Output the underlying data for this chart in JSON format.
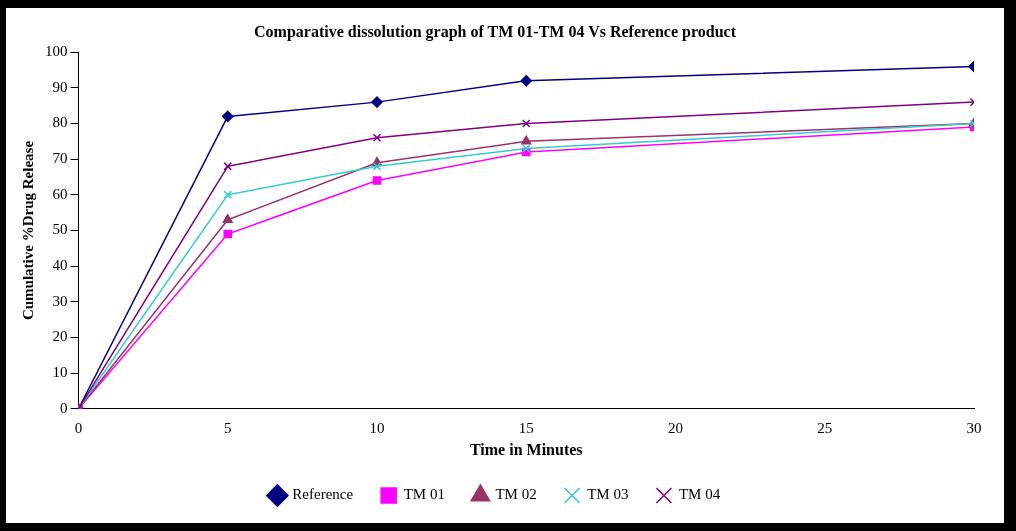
{
  "chart_data": {
    "type": "line",
    "title": "Comparative dissolution graph of TM 01-TM 04 Vs Reference product",
    "xlabel": "Time in Minutes",
    "ylabel": "Cumulative %Drug Release",
    "x": [
      0,
      5,
      10,
      15,
      30
    ],
    "series": [
      {
        "name": "Reference",
        "color": "#000080",
        "marker": "diamond",
        "values": [
          0,
          82,
          86,
          92,
          96
        ]
      },
      {
        "name": "TM 01",
        "color": "#ff00ff",
        "marker": "square",
        "values": [
          0,
          49,
          64,
          72,
          79
        ]
      },
      {
        "name": "TM 02",
        "color": "#993366",
        "marker": "triangle",
        "values": [
          0,
          53,
          69,
          75,
          80
        ]
      },
      {
        "name": "TM 03",
        "color": "#33cccc",
        "marker": "cross",
        "values": [
          0,
          60,
          68,
          73,
          80
        ]
      },
      {
        "name": "TM 04",
        "color": "#800080",
        "marker": "cross",
        "values": [
          0,
          68,
          76,
          80,
          86
        ]
      }
    ],
    "xlim": [
      0,
      30
    ],
    "xticks": [
      0,
      5,
      10,
      15,
      20,
      25,
      30
    ],
    "ylim": [
      0,
      100
    ],
    "yticks": [
      0,
      10,
      20,
      30,
      40,
      50,
      60,
      70,
      80,
      90,
      100
    ],
    "grid": false,
    "legend": "bottom",
    "line_style": "solid"
  }
}
